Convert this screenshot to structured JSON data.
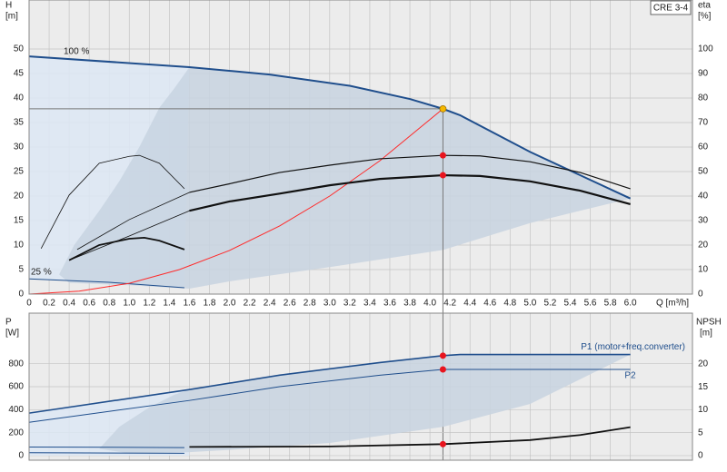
{
  "header": {
    "label": "CRE 3-4"
  },
  "chart_data": [
    {
      "type": "line",
      "ylabel": "H",
      "yunit": "[m]",
      "y2label": "eta",
      "y2unit": "[%]",
      "xlabel": "Q [m³/h]",
      "annotations": [
        "100 %",
        "25 %"
      ],
      "grid": true,
      "xlim": [
        0,
        6.62
      ],
      "ylim": [
        0,
        60
      ],
      "y2lim": [
        0,
        120
      ],
      "xticks": [
        0,
        0.2,
        0.4,
        0.6,
        0.8,
        {
          "value": 1,
          "label": "1.0"
        },
        1.2,
        1.4,
        1.6,
        1.8,
        {
          "value": 2,
          "label": "2.0"
        },
        2.2,
        2.4,
        2.6,
        2.8,
        {
          "value": 3,
          "label": "3.0"
        },
        3.2,
        3.4,
        3.6,
        3.8,
        {
          "value": 4,
          "label": "4.0"
        },
        4.2,
        4.4,
        4.6,
        4.8,
        {
          "value": 5,
          "label": "5.0"
        },
        5.2,
        5.4,
        5.6,
        5.8,
        {
          "value": 6,
          "label": "6.0"
        }
      ],
      "yticks": [
        0,
        5,
        10,
        15,
        20,
        25,
        30,
        35,
        40,
        45,
        50
      ],
      "y2ticks": [
        0,
        10,
        20,
        30,
        40,
        50,
        60,
        70,
        80,
        90,
        100
      ],
      "areas": [
        {
          "color": "#dde8f4",
          "x": [
            0,
            1.6,
            1.55,
            0.8,
            0
          ],
          "y": [
            48.5,
            46.3,
            1.3,
            2.4,
            3.1
          ]
        },
        {
          "color": "#c8d4e1",
          "x": [
            1.6,
            2.4,
            3.2,
            3.8,
            4.13,
            4.3,
            5.0,
            6.0,
            5.0,
            4.13,
            3.0,
            2.0,
            1.6,
            1.0,
            0.4,
            0.3,
            0.45,
            0.7,
            0.9,
            1.1,
            1.3,
            1.45
          ],
          "y": [
            46.3,
            44.8,
            42.5,
            39.8,
            37.8,
            36.5,
            29,
            19.5,
            14.5,
            9,
            5.5,
            2.6,
            1.1,
            1.8,
            2.3,
            4,
            10,
            17,
            23,
            30,
            38,
            42
          ]
        }
      ],
      "series": [
        {
          "color": "#1f4e8c",
          "width": 2,
          "x": [
            0,
            1.6,
            2.4,
            3.2,
            3.8,
            4.13,
            4.3,
            5.0,
            6.0
          ],
          "values": [
            48.5,
            46.3,
            44.8,
            42.5,
            39.8,
            37.8,
            36.5,
            29,
            19.5
          ]
        },
        {
          "color": "#1f4e8c",
          "width": 1,
          "x": [
            0,
            0.8,
            1.55
          ],
          "values": [
            3.1,
            2.4,
            1.3
          ]
        },
        {
          "color": "#ff2a2a",
          "width": 1,
          "x": [
            0,
            0.5,
            1,
            1.5,
            2,
            2.5,
            3,
            3.5,
            4.13
          ],
          "values": [
            0,
            0.6,
            2.2,
            5,
            8.9,
            13.9,
            20,
            27.2,
            37.8
          ]
        },
        {
          "color": "#111111",
          "width": 1.2,
          "axis": "y2",
          "x": [
            1.6,
            2,
            2.5,
            3,
            3.5,
            4.13,
            4.5,
            5,
            5.5,
            6.0
          ],
          "values": [
            41.5,
            45,
            49.6,
            52.6,
            55.2,
            56.6,
            56.4,
            54,
            49.6,
            43
          ]
        },
        {
          "color": "#111111",
          "width": 2.2,
          "axis": "y2",
          "x": [
            1.6,
            2,
            2.5,
            3,
            3.5,
            4.13,
            4.5,
            5,
            5.5,
            6.0
          ],
          "values": [
            34,
            37.8,
            41,
            44.4,
            47,
            48.5,
            48.2,
            46,
            42.2,
            36.7
          ]
        },
        {
          "color": "#111111",
          "width": 0.8,
          "axis": "y2",
          "x": [
            0.12,
            0.4,
            0.7,
            1.0,
            1.1,
            1.3,
            1.55
          ],
          "values": [
            18.6,
            40.4,
            53.4,
            56.2,
            56.6,
            53.4,
            43
          ]
        },
        {
          "color": "#111111",
          "width": 1.8,
          "axis": "y2",
          "x": [
            0.4,
            0.7,
            1.0,
            1.15,
            1.3,
            1.55
          ],
          "values": [
            13.8,
            20,
            22.6,
            23,
            21.8,
            18.2
          ]
        },
        {
          "color": "#111111",
          "width": 0.8,
          "axis": "y2",
          "x": [
            0.48,
            1.0,
            1.6
          ],
          "values": [
            18.2,
            30.4,
            41.5
          ]
        },
        {
          "color": "#111111",
          "width": 0.8,
          "axis": "y2",
          "x": [
            0.4,
            1.0,
            1.6
          ],
          "values": [
            13.8,
            23.7,
            34
          ]
        }
      ],
      "markers": [
        {
          "x": 4.13,
          "y": 37.8,
          "color": "#f5b800"
        },
        {
          "x": 4.13,
          "y": 56.6,
          "axis": "y2",
          "color": "#e8141e"
        },
        {
          "x": 4.13,
          "y": 48.5,
          "axis": "y2",
          "color": "#e8141e"
        }
      ]
    },
    {
      "type": "line",
      "ylabel": "P",
      "yunit": "[W]",
      "y2label": "NPSH",
      "y2unit": "[m]",
      "grid": true,
      "ylim": [
        -40,
        1240
      ],
      "y2lim": [
        -1,
        31.1
      ],
      "yticks": [
        0,
        200,
        400,
        600,
        800
      ],
      "y2ticks": [
        0,
        5,
        10,
        15,
        20
      ],
      "areas": [
        {
          "color": "#dde8f4",
          "x": [
            0,
            1.6,
            1.6,
            0
          ],
          "y": [
            370,
            575,
            0,
            0
          ]
        },
        {
          "color": "#c8d4e1",
          "x": [
            1.6,
            2.5,
            3.5,
            4.13,
            4.3,
            6.0,
            5.0,
            4.13,
            3.0,
            2.0,
            1.6,
            1.0,
            0.7,
            0.9,
            1.2,
            1.45
          ],
          "y": [
            575,
            700,
            810,
            870,
            880,
            880,
            450,
            250,
            110,
            50,
            30,
            20,
            60,
            250,
            420,
            530
          ]
        }
      ],
      "series": [
        {
          "name": "P1 (motor+freq.converter)",
          "color": "#1f4e8c",
          "width": 1.6,
          "x": [
            0,
            1.6,
            2.5,
            3.5,
            4.13,
            4.3,
            6.0
          ],
          "values": [
            370,
            575,
            700,
            810,
            870,
            880,
            880
          ]
        },
        {
          "name": "P2",
          "color": "#1f4e8c",
          "width": 1,
          "x": [
            0,
            1.6,
            2.5,
            3.5,
            4.13,
            4.3,
            6.0
          ],
          "values": [
            290,
            480,
            600,
            700,
            750,
            750,
            750
          ]
        },
        {
          "color": "#1f4e8c",
          "width": 1,
          "x": [
            0,
            1.55
          ],
          "values": [
            75,
            70
          ]
        },
        {
          "color": "#1f4e8c",
          "width": 1,
          "x": [
            0,
            1.55
          ],
          "values": [
            25,
            20
          ]
        },
        {
          "color": "#111111",
          "width": 1.8,
          "axis": "y2",
          "x": [
            1.6,
            3,
            4.13,
            5,
            5.5,
            6.0
          ],
          "values": [
            1.9,
            2,
            2.5,
            3.4,
            4.5,
            6.2
          ]
        }
      ],
      "markers": [
        {
          "x": 4.13,
          "y": 870,
          "color": "#e8141e"
        },
        {
          "x": 4.13,
          "y": 750,
          "color": "#e8141e"
        },
        {
          "x": 4.13,
          "y": 2.5,
          "axis": "y2",
          "color": "#e8141e"
        }
      ]
    }
  ]
}
